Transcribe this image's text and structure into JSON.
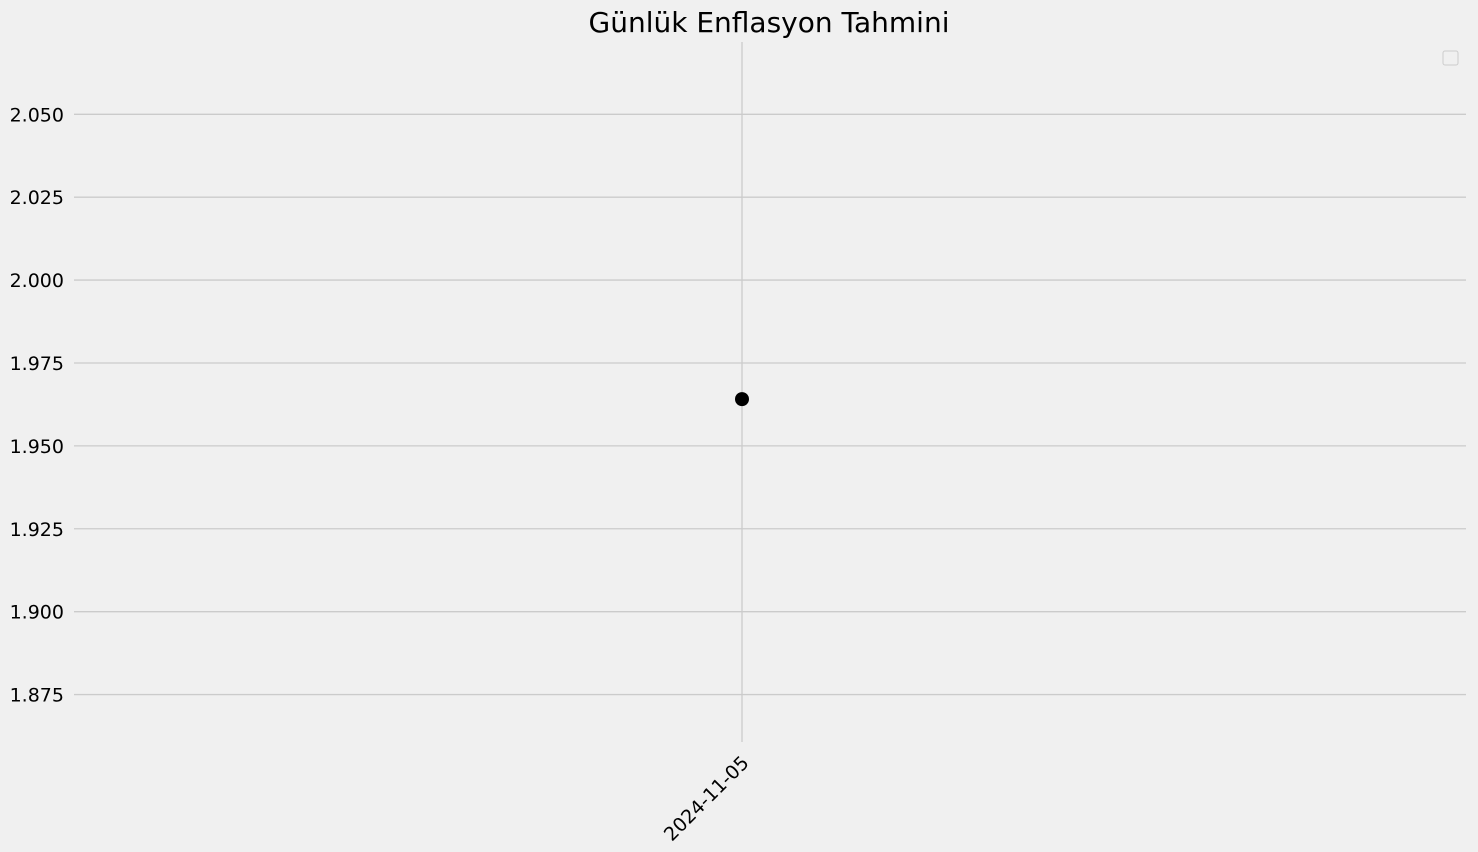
{
  "chart_data": {
    "type": "scatter",
    "title": "Günlük Enflasyon Tahmini",
    "xlabel": "",
    "ylabel": "",
    "x": [
      "2024-11-05"
    ],
    "y": [
      1.9641
    ],
    "ylim": [
      1.8607,
      2.0718
    ],
    "yticks": [
      "1.875",
      "1.900",
      "1.925",
      "1.950",
      "1.975",
      "2.000",
      "2.025",
      "2.050"
    ],
    "xticks": [
      "2024-11-05"
    ],
    "grid": true,
    "legend": {
      "location": "top-right",
      "entries": []
    },
    "colors": {
      "background": "#f0f0f0",
      "grid": "#cbcbcb",
      "marker": "#000000"
    }
  }
}
